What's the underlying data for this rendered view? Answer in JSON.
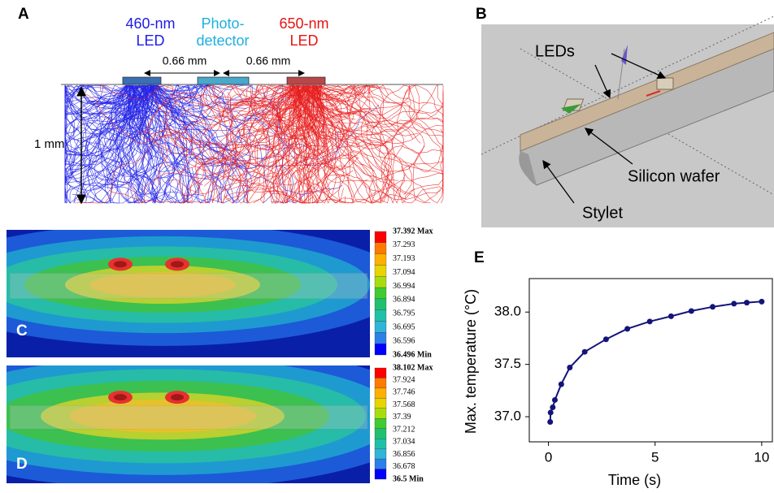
{
  "panel_a": {
    "label": "A",
    "blue_led": [
      "460-nm",
      "LED"
    ],
    "photodetector": [
      "Photo-",
      "detector"
    ],
    "red_led": [
      "650-nm",
      "LED"
    ],
    "spacing_left": "0.66 mm",
    "spacing_right": "0.66 mm",
    "depth": "1 mm"
  },
  "panel_b": {
    "label": "B",
    "leds": "LEDs",
    "wafer": "Silicon wafer",
    "stylet": "Stylet"
  },
  "panel_c": {
    "label": "C",
    "colorbar": {
      "labels": [
        "37.392 Max",
        "37.293",
        "37.193",
        "37.094",
        "36.994",
        "36.894",
        "36.795",
        "36.695",
        "36.596",
        "36.496 Min"
      ],
      "colors": [
        "#ff0000",
        "#ff7a00",
        "#ffb000",
        "#e8d400",
        "#a8dc10",
        "#40cc30",
        "#20c070",
        "#20c0a8",
        "#30b4d8",
        "#2a80e8",
        "#0000ff"
      ]
    }
  },
  "panel_d": {
    "label": "D",
    "colorbar": {
      "labels": [
        "38.102 Max",
        "37.924",
        "37.746",
        "37.568",
        "37.39",
        "37.212",
        "37.034",
        "36.856",
        "36.678",
        "36.5 Min"
      ],
      "colors": [
        "#ff0000",
        "#ff7a00",
        "#ffb000",
        "#e8d400",
        "#a8dc10",
        "#40cc30",
        "#20c070",
        "#20c0a8",
        "#30b4d8",
        "#2a80e8",
        "#0000ff"
      ]
    }
  },
  "panel_e": {
    "label": "E"
  },
  "chart_data": {
    "type": "line",
    "color": "#14147a",
    "markers": true,
    "x": [
      0.08,
      0.1,
      0.2,
      0.3,
      0.6,
      1.0,
      1.7,
      2.7,
      3.7,
      4.75,
      5.75,
      6.7,
      7.7,
      8.7,
      9.3,
      10
    ],
    "values": [
      36.95,
      37.04,
      37.09,
      37.16,
      37.31,
      37.47,
      37.62,
      37.74,
      37.84,
      37.91,
      37.96,
      38.01,
      38.05,
      38.08,
      38.09,
      38.1
    ],
    "xlabel": "Time (s)",
    "ylabel": "Max. temperature (°C)",
    "xlim": [
      -0.9,
      10.5
    ],
    "ylim": [
      36.76,
      38.32
    ],
    "xticks": [
      0,
      5,
      10
    ],
    "yticks": [
      {
        "value": 37,
        "label": "37.0"
      },
      37.5,
      {
        "value": 38,
        "label": "38.0"
      }
    ]
  }
}
